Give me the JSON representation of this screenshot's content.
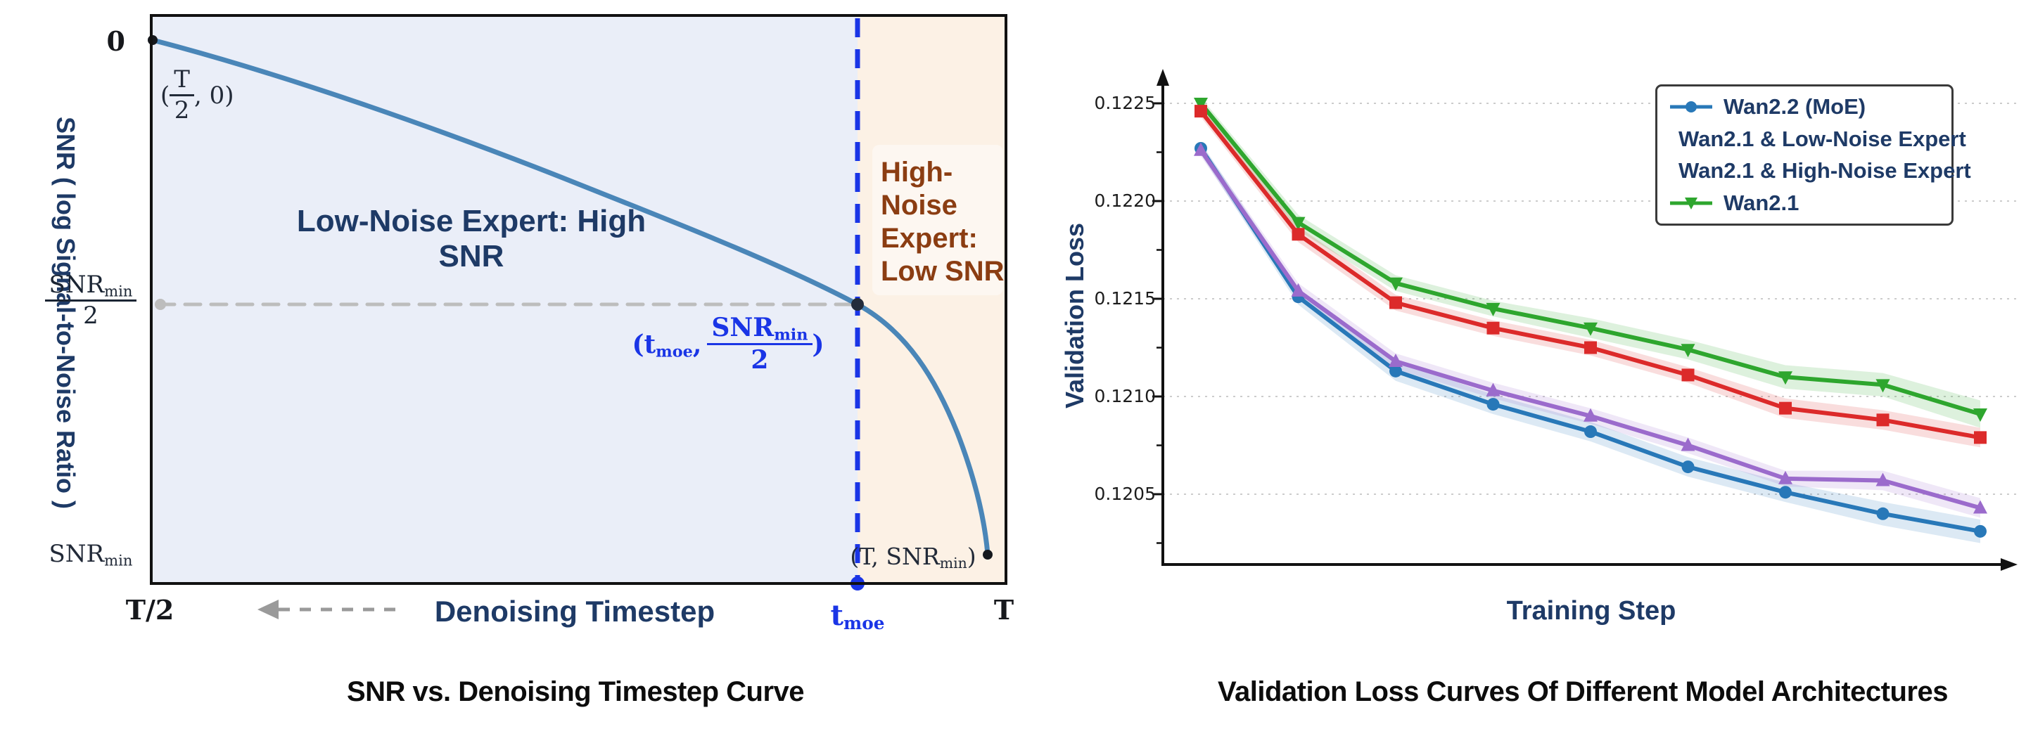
{
  "figure": {
    "left_title": "SNR vs. Denoising Timestep Curve",
    "right_title": "Validation Loss Curves Of Different Model Architectures"
  },
  "left_chart": {
    "y_axis_label": "SNR ( log Signal-to-Noise Ratio )",
    "x_axis_label": "Denoising Timestep",
    "origin_tick": "0",
    "regions": {
      "low_noise": {
        "label": "Low-Noise Expert: High SNR",
        "bg": "#EAEEF8",
        "text_color": "#1E3A66"
      },
      "high_noise": {
        "lines": [
          "High-",
          "Noise",
          "Expert:",
          "Low SNR"
        ],
        "bg": "#FCF1E5",
        "text_color": "#8B3D12"
      }
    },
    "x_ticks": {
      "left": "T/2",
      "right": "T",
      "moe_base": "t",
      "moe_sub": "moe"
    },
    "y_ticks": {
      "half_num_base": "SNR",
      "half_num_sub": "min",
      "half_den": "2",
      "min_base": "SNR",
      "min_sub": "min"
    },
    "annotations": {
      "start_open": "(",
      "start_frac_num": "T",
      "start_frac_den": "2",
      "start_close": ", 0)",
      "moe_open": "(t",
      "moe_open_sub": "moe",
      "moe_comma": ",",
      "moe_num_base": "SNR",
      "moe_num_sub": "min",
      "moe_den": "2",
      "moe_close": ")",
      "end_pre": "(T, ",
      "end_base": "SNR",
      "end_sub": "min",
      "end_close": ")"
    },
    "colors": {
      "curve": "#4A86B8",
      "moe_line": "#1A35E6",
      "threshold_line": "#BDBDBD",
      "axis": "#111111"
    }
  },
  "right_chart": {
    "ylabel": "Validation Loss",
    "xlabel": "Training Step"
  },
  "chart_data": [
    {
      "type": "line",
      "title": "SNR vs. Denoising Timestep Curve",
      "xlabel": "Denoising Timestep",
      "ylabel": "SNR ( log Signal-to-Noise Ratio )",
      "description": "Schematic: monotonically decreasing log-SNR curve from (T/2, 0) to (T, SNR_min). Vertical dashed boundary at t_moe, where SNR = SNR_min/2, splits the Low-Noise Expert region (high SNR) from the High-Noise Expert region (low SNR). A gray dashed horizontal line marks SNR_min/2 and a gray dashed arrow points toward decreasing timestep.",
      "key_points": [
        [
          "T/2",
          "0"
        ],
        [
          "t_moe",
          "SNR_min/2"
        ],
        [
          "T",
          "SNR_min"
        ]
      ]
    },
    {
      "type": "line",
      "title": "Validation Loss Curves Of Different Model Architectures",
      "xlabel": "Training Step",
      "ylabel": "Validation Loss",
      "x": [
        1,
        2,
        3,
        4,
        5,
        6,
        7,
        8,
        9
      ],
      "yticks": [
        0.1205,
        0.121,
        0.1215,
        0.122,
        0.1225
      ],
      "ytick_labels": [
        "0.1205",
        "0.1210",
        "0.1215",
        "0.1220",
        "0.1225"
      ],
      "ylim": [
        0.1202,
        0.1227
      ],
      "grid": true,
      "legend_position": "upper right",
      "series": [
        {
          "name": "Wan2.2 (MoE)",
          "color": "#2878B8",
          "marker": "circle",
          "values": [
            0.12227,
            0.12151,
            0.12113,
            0.12096,
            0.12082,
            0.12064,
            0.12051,
            0.1204,
            0.12031
          ],
          "band_halfwidth": [
            3e-05,
            4e-05,
            5e-05,
            5e-05,
            5e-05,
            5e-05,
            5e-05,
            6e-05,
            6e-05
          ]
        },
        {
          "name": "Wan2.1 & Low-Noise Expert",
          "color": "#9B6BCC",
          "marker": "triangle-up",
          "values": [
            0.12226,
            0.12154,
            0.12118,
            0.12103,
            0.1209,
            0.12075,
            0.12058,
            0.12057,
            0.12043
          ],
          "band_halfwidth": [
            3e-05,
            4e-05,
            4e-05,
            4e-05,
            4e-05,
            4e-05,
            4e-05,
            5e-05,
            5e-05
          ]
        },
        {
          "name": "Wan2.1 & High-Noise Expert",
          "color": "#DC2A2A",
          "marker": "square",
          "values": [
            0.12246,
            0.12183,
            0.12148,
            0.12135,
            0.12125,
            0.12111,
            0.12094,
            0.12088,
            0.12079
          ],
          "band_halfwidth": [
            3e-05,
            4e-05,
            4e-05,
            4e-05,
            4e-05,
            4e-05,
            5e-05,
            5e-05,
            5e-05
          ]
        },
        {
          "name": "Wan2.1",
          "color": "#2EA62E",
          "marker": "triangle-down",
          "values": [
            0.1225,
            0.12189,
            0.12158,
            0.12145,
            0.12135,
            0.12124,
            0.1211,
            0.12106,
            0.12091
          ],
          "band_halfwidth": [
            3e-05,
            4e-05,
            4e-05,
            4e-05,
            5e-05,
            5e-05,
            6e-05,
            6e-05,
            7e-05
          ]
        }
      ]
    }
  ]
}
